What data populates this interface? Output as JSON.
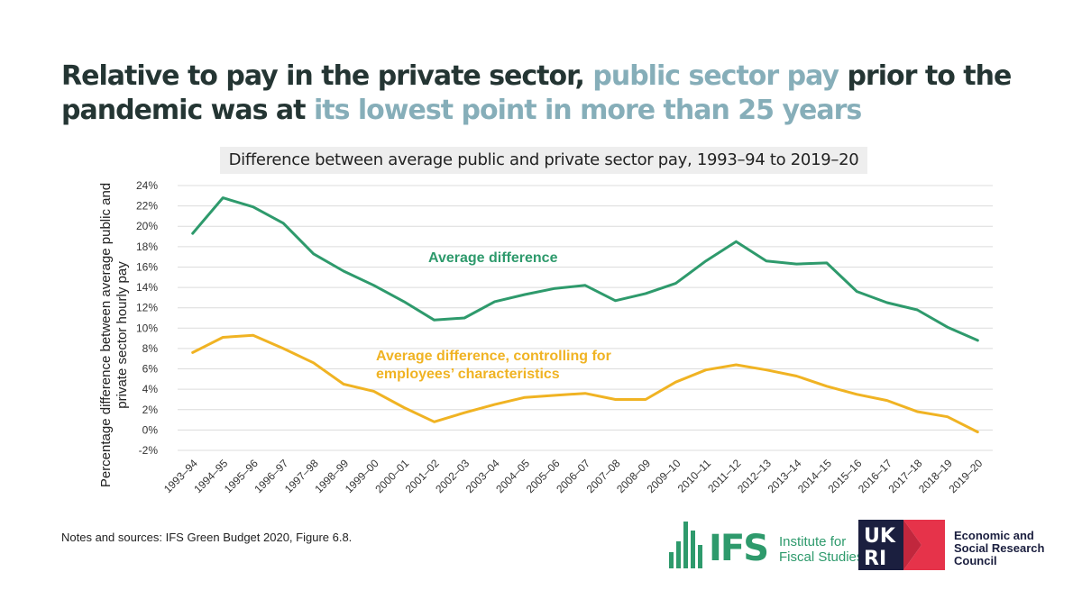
{
  "headline": {
    "part1": "Relative to pay in the private sector, ",
    "highlight1": "public sector pay",
    "part2": " prior to the pandemic was at ",
    "highlight2": "its lowest point in more than 25 years"
  },
  "notes": "Notes and sources: IFS Green Budget 2020, Figure 6.8.",
  "logos": {
    "ifs_word": "IFS",
    "ifs_name": "Institute for Fiscal Studies",
    "ukri_name": "Economic and Social Research Council"
  },
  "colors": {
    "green": "#2e9a6c",
    "yellow": "#f0b323",
    "highlight": "#86aeb9",
    "ukri_red": "#e6334a"
  },
  "chart_data": {
    "type": "line",
    "title": "Difference between average public and private sector pay, 1993–94 to 2019–20",
    "ylabel": "Percentage difference between average public and private sector hourly pay",
    "xlabel": "",
    "ylim": [
      -2,
      24
    ],
    "yticks": [
      "-2%",
      "0%",
      "2%",
      "4%",
      "6%",
      "8%",
      "10%",
      "12%",
      "14%",
      "16%",
      "18%",
      "20%",
      "22%",
      "24%"
    ],
    "grid": true,
    "categories": [
      "1993–94",
      "1994–95",
      "1995–96",
      "1996–97",
      "1997–98",
      "1998–99",
      "1999–00",
      "2000–01",
      "2001–02",
      "2002–03",
      "2003–04",
      "2004–05",
      "2005–06",
      "2006–07",
      "2007–08",
      "2008–09",
      "2009–10",
      "2010–11",
      "2011–12",
      "2012–13",
      "2013–14",
      "2014–15",
      "2015–16",
      "2016–17",
      "2017–18",
      "2018–19",
      "2019–20"
    ],
    "series": [
      {
        "name": "Average difference",
        "color": "#2e9a6c",
        "values": [
          19.3,
          22.8,
          21.9,
          20.3,
          17.3,
          15.6,
          14.2,
          12.6,
          10.8,
          11.0,
          12.6,
          13.3,
          13.9,
          14.2,
          12.7,
          13.4,
          14.4,
          16.6,
          18.5,
          16.6,
          16.3,
          16.4,
          13.6,
          12.5,
          11.8,
          10.1,
          8.8
        ]
      },
      {
        "name": "Average difference, controlling for employees’ characteristics",
        "color": "#f0b323",
        "values": [
          7.6,
          9.1,
          9.3,
          8.0,
          6.6,
          4.5,
          3.8,
          2.2,
          0.8,
          1.7,
          2.5,
          3.2,
          3.4,
          3.6,
          3.0,
          3.0,
          4.7,
          5.9,
          6.4,
          5.9,
          5.3,
          4.3,
          3.5,
          2.9,
          1.8,
          1.3,
          -0.2
        ]
      }
    ],
    "annotations": [
      "Average difference",
      "Average difference, controlling for",
      "employees’ characteristics"
    ]
  }
}
